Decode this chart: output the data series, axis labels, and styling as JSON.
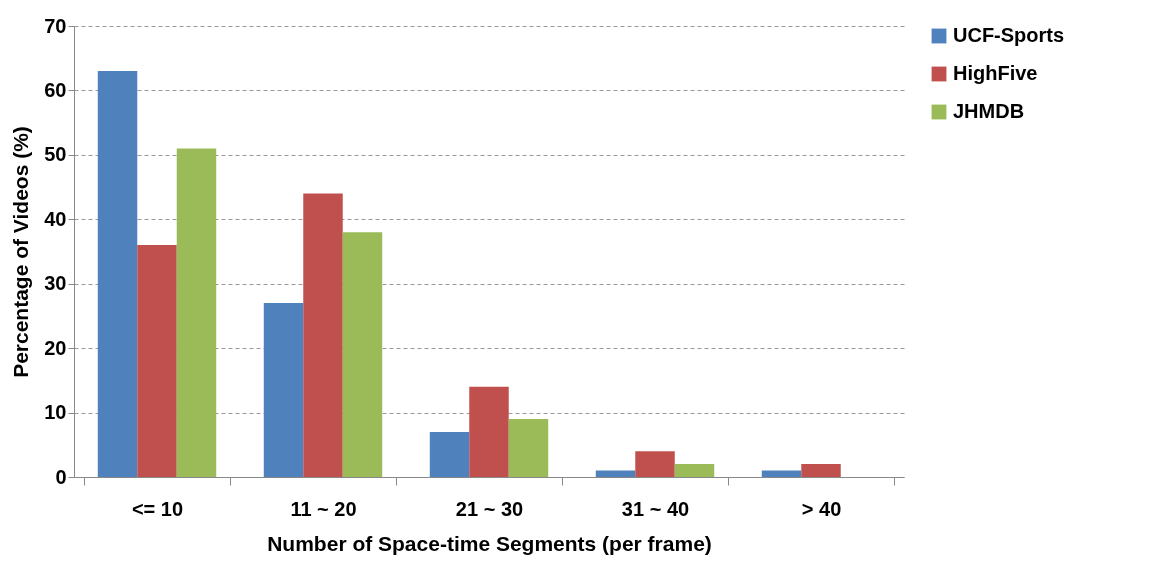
{
  "chart_data": {
    "type": "bar",
    "xlabel": "Number of Space-time Segments (per frame)",
    "ylabel": "Percentage of Videos (%)",
    "categories": [
      "<= 10",
      "11 ~ 20",
      "21 ~ 30",
      "31 ~ 40",
      ">  40"
    ],
    "series": [
      {
        "name": "UCF-Sports",
        "color": "#4f81bd",
        "values": [
          63,
          27,
          7,
          1,
          1
        ]
      },
      {
        "name": "HighFive",
        "color": "#c0504d",
        "values": [
          36,
          44,
          14,
          4,
          2
        ]
      },
      {
        "name": "JHMDB",
        "color": "#9bbb59",
        "values": [
          51,
          38,
          9,
          2,
          0
        ]
      }
    ],
    "ylim": [
      0,
      70
    ],
    "yticks": [
      0,
      10,
      20,
      30,
      40,
      50,
      60,
      70
    ],
    "grid": "y",
    "legend": "right"
  }
}
